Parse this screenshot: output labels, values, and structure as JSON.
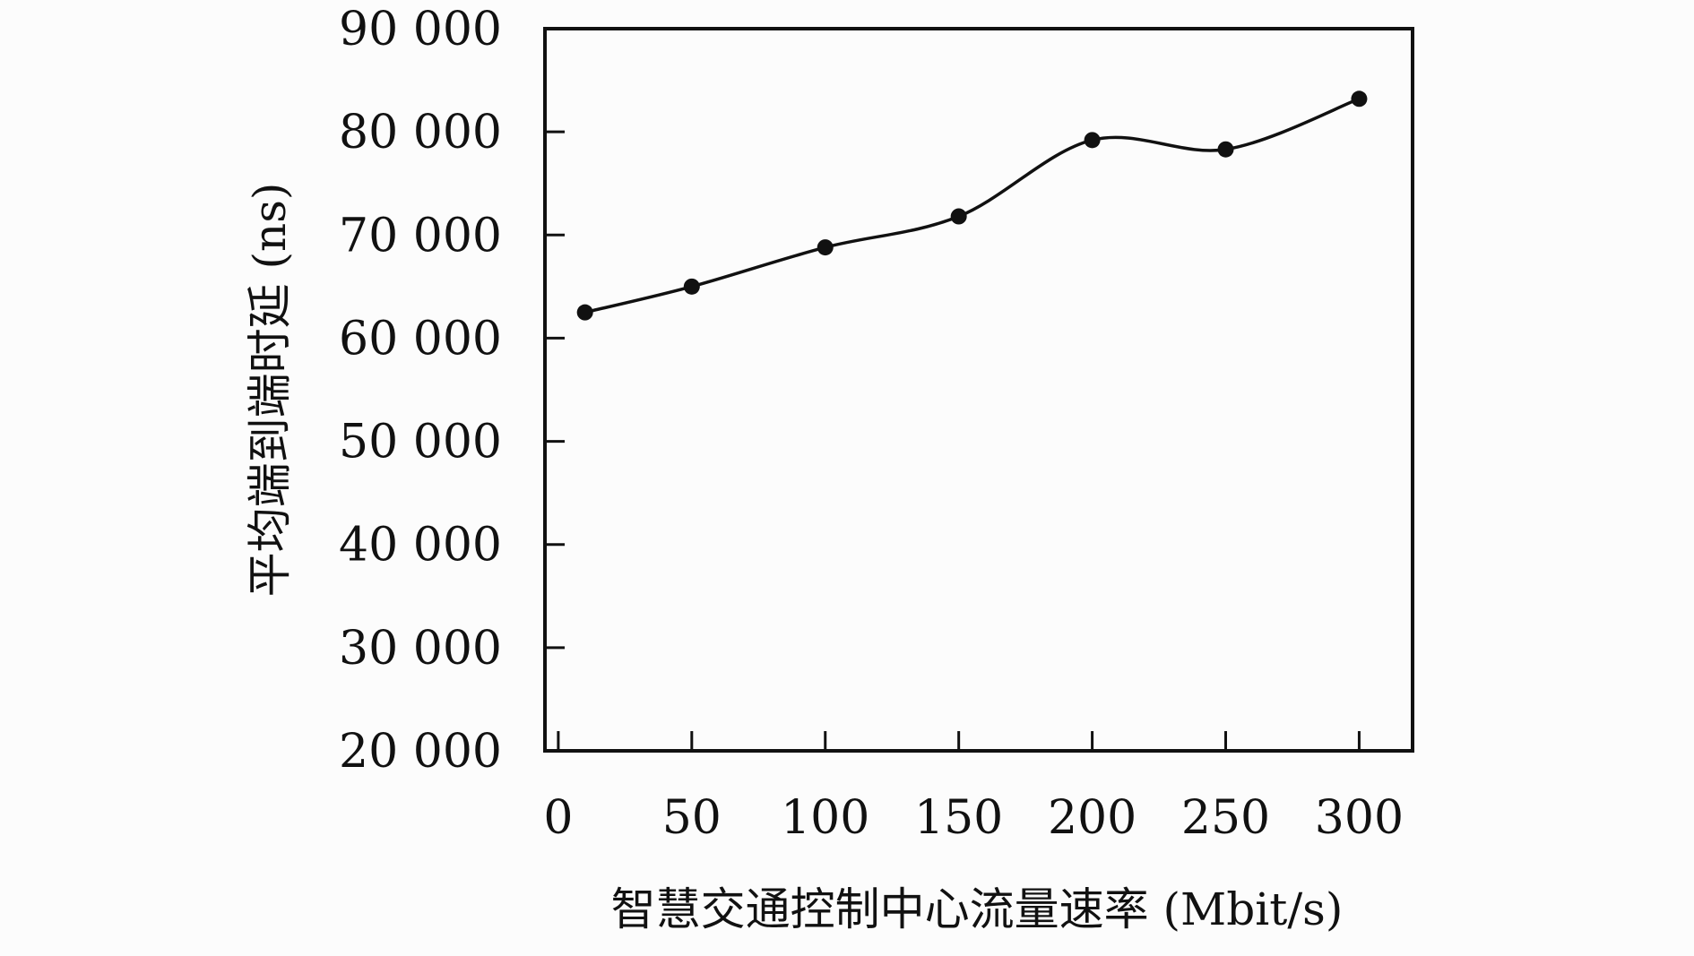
{
  "chart_data": {
    "type": "line",
    "xlabel": "智慧交通控制中心流量速率 (Mbit/s)",
    "ylabel": "平均端到端时延 (ns)",
    "xlim": [
      -5,
      320
    ],
    "ylim": [
      20000,
      90000
    ],
    "x_ticks": [
      0,
      50,
      100,
      150,
      200,
      250,
      300
    ],
    "x_tick_labels": [
      "0",
      "50",
      "100",
      "150",
      "200",
      "250",
      "300"
    ],
    "y_ticks": [
      20000,
      30000,
      40000,
      50000,
      60000,
      70000,
      80000,
      90000
    ],
    "y_tick_labels": [
      "20 000",
      "30 000",
      "40 000",
      "50 000",
      "60 000",
      "70 000",
      "80 000",
      "90 000"
    ],
    "grid": false,
    "smooth": true,
    "series": [
      {
        "x": [
          10,
          50,
          100,
          150,
          200,
          250,
          300
        ],
        "y": [
          62500,
          65000,
          68800,
          71800,
          79200,
          78300,
          83200
        ],
        "color": "#111111",
        "marker": "circle"
      }
    ]
  }
}
